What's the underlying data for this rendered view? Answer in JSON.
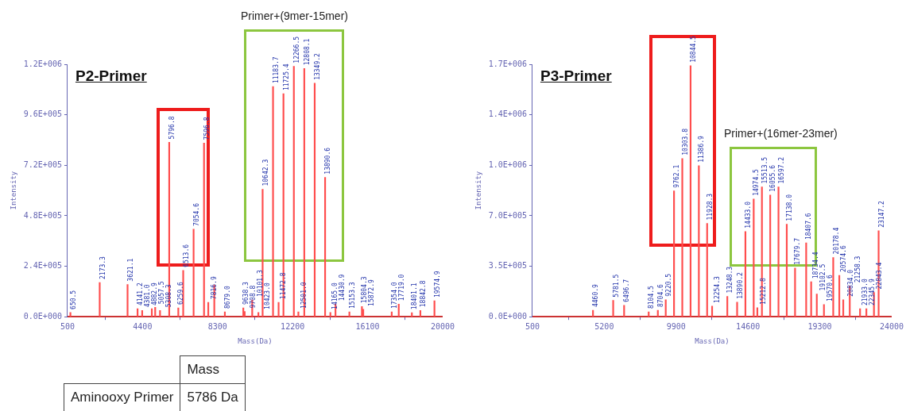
{
  "chart_data": [
    {
      "type": "bar",
      "title": "P2-Primer",
      "xlabel": "Mass(Da)",
      "ylabel": "Intensity",
      "grid": false,
      "legend": false,
      "x": [
        650.5,
        2173.3,
        3621.1,
        4141.2,
        4381.0,
        4882.9,
        5057.5,
        5308.3,
        5786.8,
        6259.6,
        6513.6,
        7054.6,
        7596.8,
        7816.9,
        8130,
        8679.0,
        9638.3,
        9708.8,
        10101.3,
        10423.0,
        10642.3,
        11183.7,
        11472.8,
        11725.4,
        12266.5,
        12501.0,
        12808.1,
        13349.2,
        13890.6,
        14165.0,
        14430.9,
        15153.3,
        15804.3,
        15872.9,
        17354.0,
        17719.0,
        18401.1,
        18842.8,
        19574.9
      ],
      "values": [
        20000,
        163000,
        153000,
        38000,
        30000,
        38000,
        45000,
        30000,
        829000,
        42000,
        220000,
        416000,
        825000,
        68000,
        151000,
        23000,
        42000,
        25000,
        80000,
        20000,
        606000,
        1094000,
        68000,
        1060000,
        1190000,
        23000,
        1180000,
        1110000,
        662000,
        20000,
        60000,
        23000,
        49000,
        35000,
        23000,
        60000,
        19000,
        30000,
        76000
      ],
      "annotations": [
        "Primer+(9mer-15mer)",
        {
          "text": "650.5",
          "x": 650.5,
          "y": 20000
        },
        {
          "text": "2173.3",
          "x": 2173.3,
          "y": 163000
        },
        {
          "text": "3621.1",
          "x": 3621.1,
          "y": 153000
        },
        {
          "text": "4141.2",
          "x": 4141.2,
          "y": 38000
        },
        {
          "text": "4381.0",
          "x": 4381.0,
          "y": 30000
        },
        {
          "text": "4882.9",
          "x": 4882.9,
          "y": 38000
        },
        {
          "text": "5057.5",
          "x": 5057.5,
          "y": 45000
        },
        {
          "text": "5308.3",
          "x": 5308.3,
          "y": 30000
        },
        {
          "text": "5796.8",
          "x": 5786.8,
          "y": 829000
        },
        {
          "text": "6259.6",
          "x": 6259.6,
          "y": 42000
        },
        {
          "text": "6513.6",
          "x": 6513.6,
          "y": 220000
        },
        {
          "text": "7054.6",
          "x": 7054.6,
          "y": 416000
        },
        {
          "text": "7596.8",
          "x": 7596.8,
          "y": 825000
        },
        {
          "text": "7816.9",
          "x": 7816.9,
          "y": 68000
        },
        {
          "text": "8679.0",
          "x": 8679.0,
          "y": 23000
        },
        {
          "text": "9638.3",
          "x": 9638.3,
          "y": 42000
        },
        {
          "text": "9708.8",
          "x": 9708.8,
          "y": 25000
        },
        {
          "text": "10101.3",
          "x": 10101.3,
          "y": 80000
        },
        {
          "text": "10423.0",
          "x": 10423.0,
          "y": 20000
        },
        {
          "text": "10642.3",
          "x": 10642.3,
          "y": 606000
        },
        {
          "text": "11183.7",
          "x": 11183.7,
          "y": 1094000
        },
        {
          "text": "11472.8",
          "x": 11472.8,
          "y": 68000
        },
        {
          "text": "11725.4",
          "x": 11725.4,
          "y": 1060000
        },
        {
          "text": "12266.5",
          "x": 12266.5,
          "y": 1190000
        },
        {
          "text": "12501.0",
          "x": 12501.0,
          "y": 23000
        },
        {
          "text": "12808.1",
          "x": 12808.1,
          "y": 1180000
        },
        {
          "text": "13349.2",
          "x": 13349.2,
          "y": 1110000
        },
        {
          "text": "13890.6",
          "x": 13890.6,
          "y": 662000
        },
        {
          "text": "14165.0",
          "x": 14165.0,
          "y": 20000
        },
        {
          "text": "14430.9",
          "x": 14430.9,
          "y": 60000
        },
        {
          "text": "15153.3",
          "x": 15153.3,
          "y": 23000
        },
        {
          "text": "15804.3",
          "x": 15804.3,
          "y": 49000
        },
        {
          "text": "15872.9",
          "x": 15872.9,
          "y": 35000
        },
        {
          "text": "17354.0",
          "x": 17354.0,
          "y": 23000
        },
        {
          "text": "17719.0",
          "x": 17719.0,
          "y": 60000
        },
        {
          "text": "18401.1",
          "x": 18401.1,
          "y": 19000
        },
        {
          "text": "18842.8",
          "x": 18842.8,
          "y": 30000
        },
        {
          "text": "19574.9",
          "x": 19574.9,
          "y": 76000
        }
      ],
      "color": "#ff4d4d",
      "xlim": [
        500,
        20000
      ],
      "xticks": [
        500,
        4400,
        8300,
        12200,
        16100,
        20000
      ],
      "ylim": [
        0,
        1200000
      ],
      "yticks": [
        {
          "value": 0,
          "label": "0.0E+000"
        },
        {
          "value": 240000,
          "label": "2.4E+005"
        },
        {
          "value": 480000,
          "label": "4.8E+005"
        },
        {
          "value": 720000,
          "label": "7.2E+005"
        },
        {
          "value": 960000,
          "label": "9.6E+005"
        },
        {
          "value": 1200000,
          "label": "1.2E+006"
        }
      ]
    },
    {
      "type": "bar",
      "title": "P3-Primer",
      "xlabel": "Mass(Da)",
      "ylabel": "Intensity",
      "grid": false,
      "legend": false,
      "x": [
        4460.9,
        5781.5,
        6496.7,
        8104.5,
        8704.6,
        9220.5,
        9762.1,
        10303.8,
        10844.5,
        11386.9,
        11928.3,
        12254.3,
        13248.3,
        13890.2,
        14433.0,
        14974.5,
        15212.8,
        15513.5,
        16055.6,
        16597.2,
        17138.0,
        17679.7,
        18407.6,
        18734.4,
        19102.5,
        19570.6,
        20178.4,
        20574.6,
        20834.0,
        21258.3,
        21933.0,
        22345.9,
        22843.4,
        23147.2
      ],
      "values": [
        45000,
        113000,
        79000,
        34000,
        45000,
        118000,
        872000,
        1097000,
        1740000,
        1047000,
        647000,
        73000,
        141000,
        101000,
        591000,
        816000,
        62000,
        900000,
        844000,
        900000,
        641000,
        338000,
        512000,
        242000,
        158000,
        84000,
        411000,
        287000,
        118000,
        214000,
        56000,
        56000,
        169000,
        596000
      ],
      "annotations": [
        "Primer+(16mer-23mer)",
        {
          "text": "4460.9",
          "x": 4460.9,
          "y": 45000
        },
        {
          "text": "5781.5",
          "x": 5781.5,
          "y": 113000
        },
        {
          "text": "6496.7",
          "x": 6496.7,
          "y": 79000
        },
        {
          "text": "8104.5",
          "x": 8104.5,
          "y": 34000
        },
        {
          "text": "8704.6",
          "x": 8704.6,
          "y": 45000
        },
        {
          "text": "9220.5",
          "x": 9220.5,
          "y": 118000
        },
        {
          "text": "9762.1",
          "x": 9762.1,
          "y": 872000
        },
        {
          "text": "10303.8",
          "x": 10303.8,
          "y": 1097000
        },
        {
          "text": "10844.5",
          "x": 10844.5,
          "y": 1740000
        },
        {
          "text": "11386.9",
          "x": 11386.9,
          "y": 1047000
        },
        {
          "text": "11928.3",
          "x": 11928.3,
          "y": 647000
        },
        {
          "text": "12254.3",
          "x": 12254.3,
          "y": 73000
        },
        {
          "text": "13248.3",
          "x": 13248.3,
          "y": 141000
        },
        {
          "text": "13890.2",
          "x": 13890.2,
          "y": 101000
        },
        {
          "text": "14433.0",
          "x": 14433.0,
          "y": 591000
        },
        {
          "text": "14974.5",
          "x": 14974.5,
          "y": 816000
        },
        {
          "text": "15212.8",
          "x": 15212.8,
          "y": 62000
        },
        {
          "text": "15513.5",
          "x": 15513.5,
          "y": 900000
        },
        {
          "text": "16055.6",
          "x": 16055.6,
          "y": 844000
        },
        {
          "text": "16597.2",
          "x": 16597.2,
          "y": 900000
        },
        {
          "text": "17138.0",
          "x": 17138.0,
          "y": 641000
        },
        {
          "text": "17679.7",
          "x": 17679.7,
          "y": 338000
        },
        {
          "text": "18407.6",
          "x": 18407.6,
          "y": 512000
        },
        {
          "text": "18734.4",
          "x": 18734.4,
          "y": 242000
        },
        {
          "text": "19102.5",
          "x": 19102.5,
          "y": 158000
        },
        {
          "text": "19570.6",
          "x": 19570.6,
          "y": 84000
        },
        {
          "text": "20178.4",
          "x": 20178.4,
          "y": 411000
        },
        {
          "text": "20574.6",
          "x": 20574.6,
          "y": 287000
        },
        {
          "text": "20834.0",
          "x": 20834.0,
          "y": 118000
        },
        {
          "text": "21258.3",
          "x": 21258.3,
          "y": 214000
        },
        {
          "text": "21933.0",
          "x": 21933.0,
          "y": 56000
        },
        {
          "text": "22345.9",
          "x": 22345.9,
          "y": 56000
        },
        {
          "text": "22843.4",
          "x": 22843.4,
          "y": 169000
        },
        {
          "text": "23147.2",
          "x": 23147.2,
          "y": 596000
        }
      ],
      "color": "#ff4d4d",
      "xlim": [
        500,
        24000
      ],
      "xticks": [
        500,
        5200,
        9900,
        14600,
        19300,
        24000
      ],
      "ylim": [
        0,
        1750000
      ],
      "yticks": [
        {
          "value": 0,
          "label": "0.0E+000"
        },
        {
          "value": 350000,
          "label": "3.5E+005"
        },
        {
          "value": 700000,
          "label": "7.0E+005"
        },
        {
          "value": 1050000,
          "label": "1.0E+006"
        },
        {
          "value": 1400000,
          "label": "1.4E+006"
        },
        {
          "value": 1750000,
          "label": "1.7E+006"
        }
      ]
    },
    {
      "type": "other",
      "annotations": [
        "Mass",
        "Aminooxy Primer",
        "5786 Da"
      ]
    }
  ]
}
